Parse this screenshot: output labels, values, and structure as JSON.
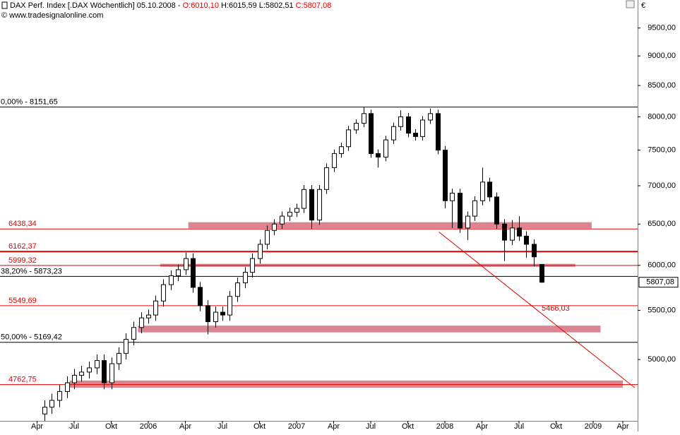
{
  "chart_data": {
    "type": "candlestick",
    "title": "DAX Perf. Index [.DAX  Wöchentlich] 05.10.2008 - ",
    "open_label": "O:6010,10",
    "high_label": "H:6015,59",
    "low_label": "L:5802,51",
    "close_label": "C:5807,08",
    "source": "© www.tradesignalonline.com",
    "currency": "€",
    "log_scale": true,
    "up_color": "#ffffff",
    "down_color": "#000000",
    "xlim": [
      2005.0,
      2009.3
    ],
    "ylim": [
      4440,
      10030
    ],
    "xticks": [
      {
        "value": 2005.25,
        "label": "Apr"
      },
      {
        "value": 2005.5,
        "label": "Jul"
      },
      {
        "value": 2005.75,
        "label": "Okt"
      },
      {
        "value": 2006.0,
        "label": "2006"
      },
      {
        "value": 2006.25,
        "label": "Apr"
      },
      {
        "value": 2006.5,
        "label": "Jul"
      },
      {
        "value": 2006.75,
        "label": "Okt"
      },
      {
        "value": 2007.0,
        "label": "2007"
      },
      {
        "value": 2007.25,
        "label": "Apr"
      },
      {
        "value": 2007.5,
        "label": "Jul"
      },
      {
        "value": 2007.75,
        "label": "Okt"
      },
      {
        "value": 2008.0,
        "label": "2008"
      },
      {
        "value": 2008.25,
        "label": "Apr"
      },
      {
        "value": 2008.5,
        "label": "Jul"
      },
      {
        "value": 2008.75,
        "label": "Okt"
      },
      {
        "value": 2009.0,
        "label": "2009"
      },
      {
        "value": 2009.2,
        "label": "Apr"
      }
    ],
    "yticks": [
      {
        "value": 5000,
        "label": "5000,00"
      },
      {
        "value": 5500,
        "label": "5500,00"
      },
      {
        "value": 6000,
        "label": "6000,00"
      },
      {
        "value": 6500,
        "label": "6500,00"
      },
      {
        "value": 7000,
        "label": "7000,00"
      },
      {
        "value": 7500,
        "label": "7500,00"
      },
      {
        "value": 8000,
        "label": "8000,00"
      },
      {
        "value": 8500,
        "label": "8500,00"
      },
      {
        "value": 9000,
        "label": "9000,00"
      },
      {
        "value": 9500,
        "label": "9500,00"
      }
    ],
    "x": [
      2005.3,
      2005.35,
      2005.4,
      2005.45,
      2005.5,
      2005.55,
      2005.6,
      2005.65,
      2005.7,
      2005.75,
      2005.8,
      2005.85,
      2005.9,
      2005.95,
      2006.0,
      2006.05,
      2006.1,
      2006.15,
      2006.2,
      2006.25,
      2006.3,
      2006.35,
      2006.4,
      2006.45,
      2006.5,
      2006.55,
      2006.6,
      2006.65,
      2006.7,
      2006.75,
      2006.8,
      2006.85,
      2006.9,
      2006.95,
      2007.0,
      2007.05,
      2007.1,
      2007.15,
      2007.2,
      2007.25,
      2007.3,
      2007.35,
      2007.4,
      2007.45,
      2007.5,
      2007.55,
      2007.6,
      2007.65,
      2007.7,
      2007.75,
      2007.8,
      2007.85,
      2007.9,
      2007.95,
      2008.0,
      2008.05,
      2008.1,
      2008.15,
      2008.2,
      2008.25,
      2008.3,
      2008.35,
      2008.4,
      2008.45,
      2008.5,
      2008.55,
      2008.6,
      2008.65
    ],
    "open": [
      4500,
      4560,
      4620,
      4700,
      4780,
      4850,
      4880,
      4920,
      4990,
      4780,
      4960,
      5060,
      5200,
      5320,
      5420,
      5450,
      5600,
      5780,
      5880,
      5950,
      6080,
      5750,
      5550,
      5380,
      5480,
      5450,
      5650,
      5800,
      5920,
      6080,
      6250,
      6420,
      6500,
      6600,
      6650,
      6700,
      6950,
      6550,
      6950,
      7250,
      7450,
      7550,
      7800,
      7900,
      8050,
      7450,
      7400,
      7650,
      7850,
      8000,
      7750,
      7700,
      7950,
      8050,
      7500,
      6800,
      6900,
      6450,
      6600,
      6800,
      7050,
      6850,
      6500,
      6300,
      6450,
      6350,
      6250,
      6010.1
    ],
    "high": [
      4620,
      4680,
      4760,
      4840,
      4910,
      4940,
      4980,
      5050,
      5050,
      5020,
      5120,
      5260,
      5380,
      5480,
      5510,
      5660,
      5840,
      5940,
      6010,
      6150,
      6140,
      5810,
      5610,
      5540,
      5540,
      5710,
      5860,
      5980,
      6140,
      6310,
      6480,
      6560,
      6660,
      6710,
      6760,
      7010,
      7010,
      7010,
      7310,
      7510,
      7610,
      7860,
      7960,
      8150,
      8110,
      7510,
      7710,
      7910,
      8100,
      8060,
      7810,
      8010,
      8130,
      8110,
      7560,
      6960,
      6960,
      6660,
      6860,
      7250,
      7110,
      6910,
      6560,
      6550,
      6600,
      6410,
      6310,
      6015.59
    ],
    "low": [
      4440,
      4500,
      4560,
      4640,
      4720,
      4790,
      4820,
      4860,
      4720,
      4720,
      4900,
      5000,
      5140,
      5260,
      5360,
      5390,
      5540,
      5720,
      5820,
      5890,
      5690,
      5490,
      5250,
      5320,
      5390,
      5390,
      5590,
      5740,
      5860,
      6020,
      6190,
      6360,
      6440,
      6540,
      6590,
      6640,
      6440,
      6490,
      6890,
      7190,
      7390,
      7490,
      7740,
      7840,
      7390,
      7250,
      7340,
      7590,
      7790,
      7690,
      7640,
      7640,
      7890,
      7440,
      6700,
      6450,
      6390,
      6300,
      6540,
      6740,
      6790,
      6440,
      6050,
      6240,
      6290,
      6090,
      5990,
      5802.51
    ],
    "close": [
      4560,
      4620,
      4700,
      4780,
      4850,
      4880,
      4920,
      4990,
      4780,
      4960,
      5060,
      5200,
      5320,
      5420,
      5450,
      5600,
      5780,
      5880,
      5950,
      6080,
      5750,
      5550,
      5380,
      5480,
      5450,
      5650,
      5800,
      5920,
      6080,
      6250,
      6420,
      6500,
      6600,
      6650,
      6700,
      6950,
      6550,
      6950,
      7250,
      7450,
      7550,
      7800,
      7900,
      8050,
      7450,
      7400,
      7650,
      7850,
      8000,
      7750,
      7700,
      7950,
      8050,
      7500,
      6800,
      6900,
      6450,
      6600,
      6800,
      7050,
      6850,
      6500,
      6300,
      6450,
      6350,
      6250,
      6100,
      5807.08
    ],
    "levels": [
      {
        "label": "0,00% - 8151,65",
        "value": 8151.65,
        "color": "#000000",
        "line_width": 1
      },
      {
        "label": "6438,34",
        "value": 6438.34,
        "color": "#e00000",
        "line_width": 1
      },
      {
        "label": "6162,37",
        "value": 6162.37,
        "color": "#e00000",
        "line_width": 2
      },
      {
        "label": "5999,32",
        "value": 5999.32,
        "color": "#e00000",
        "line_width": 1
      },
      {
        "label": "38,20% - 5873,23",
        "value": 5873.23,
        "color": "#000000",
        "line_width": 1
      },
      {
        "label": "5549,69",
        "value": 5549.69,
        "color": "#e00000",
        "line_width": 1
      },
      {
        "label": "50,00% - 5169,42",
        "value": 5169.42,
        "color": "#000000",
        "line_width": 1
      },
      {
        "label": "4762,75",
        "value": 4762.75,
        "color": "#e00000",
        "line_width": 1
      }
    ],
    "zones": [
      {
        "x": [
          2006.27,
          2008.99
        ],
        "low": 6446,
        "high": 6523
      },
      {
        "x": [
          2006.08,
          2008.88
        ],
        "low": 5983,
        "high": 6018
      },
      {
        "x": [
          2005.93,
          2009.05
        ],
        "low": 5270,
        "high": 5339
      },
      {
        "x": [
          2005.47,
          2009.2
        ],
        "low": 4735,
        "high": 4801
      }
    ],
    "zone_color": "#d6707e",
    "trendline": {
      "x": [
        2007.96,
        2009.28
      ],
      "values": [
        6401,
        4735
      ],
      "color": "#e00000",
      "label": "5466,03"
    },
    "last_price": {
      "value": 5807.08,
      "label": "5807,08"
    }
  }
}
